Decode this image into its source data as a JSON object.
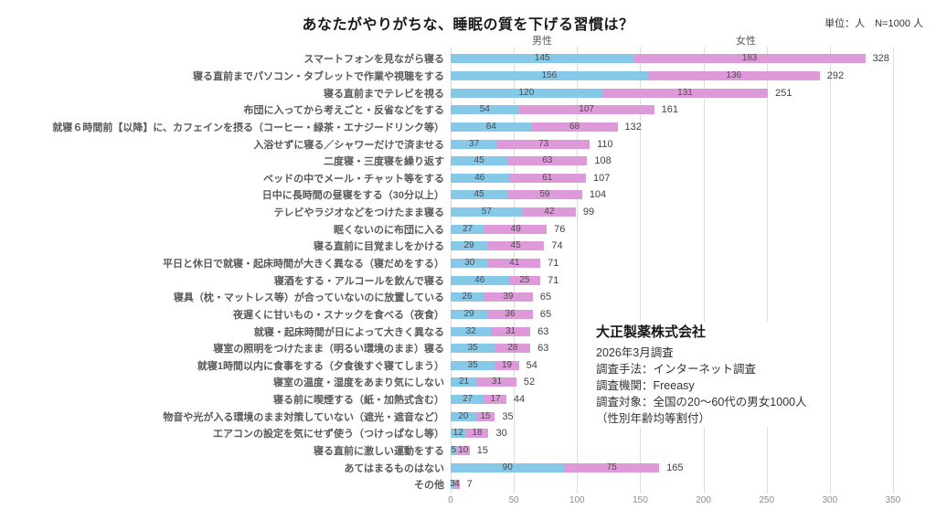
{
  "title": "あなたがやりがちな、睡眠の質を下げる習慣は？",
  "unit_note": "単位：人　N=1000 人",
  "legend": {
    "male": "男性",
    "female": "女性"
  },
  "colors": {
    "male": "#85C8E8",
    "female": "#DE9AD8",
    "grid": "#dcdcdc",
    "category_label": "#595959",
    "value_label": "#4d4d4d",
    "total_label": "#404040",
    "axis_label": "#8c8c8c"
  },
  "annotation": {
    "company": "大正製薬株式会社",
    "lines": [
      "2026年3月調査",
      "調査手法：インターネット調査",
      "調査機関：Freeasy",
      "調査対象：全国の20～60代の男女1000人",
      "（性別年齢均等割付）"
    ]
  },
  "chart_data": {
    "type": "bar",
    "stacked": true,
    "orientation": "horizontal",
    "title": "あなたがやりがちな、睡眠の質を下げる習慣は？",
    "xlim": [
      0,
      350
    ],
    "x_ticks": [
      0,
      50,
      100,
      150,
      200,
      250,
      300,
      350
    ],
    "grid": true,
    "legend_position": "top",
    "categories": [
      "スマートフォンを見ながら寝る",
      "寝る直前までパソコン・タブレットで作業や視聴をする",
      "寝る直前までテレビを視る",
      "布団に入ってから考えごと・反省などをする",
      "就寝６時間前【以降】に、カフェインを摂る（コーヒー・緑茶・エナジードリンク等）",
      "入浴せずに寝る／シャワーだけで済ませる",
      "二度寝・三度寝を繰り返す",
      "ベッドの中でメール・チャット等をする",
      "日中に長時間の昼寝をする（30分以上）",
      "テレビやラジオなどをつけたまま寝る",
      "眠くないのに布団に入る",
      "寝る直前に目覚ましをかける",
      "平日と休日で就寝・起床時間が大きく異なる（寝だめをする）",
      "寝酒をする・アルコールを飲んで寝る",
      "寝具（枕・マットレス等）が合っていないのに放置している",
      "夜遅くに甘いもの・スナックを食べる（夜食）",
      "就寝・起床時間が日によって大きく異なる",
      "寝室の照明をつけたまま（明るい環境のまま）寝る",
      "就寝1時間以内に食事をする（夕食後すぐ寝てしまう）",
      "寝室の温度・湿度をあまり気にしない",
      "寝る前に喫煙する（紙・加熱式含む）",
      "物音や光が入る環境のまま対策していない（遮光・遮音など）",
      "エアコンの設定を気にせず使う（つけっぱなし等）",
      "寝る直前に激しい運動をする",
      "あてはまるものはない",
      "その他"
    ],
    "series": [
      {
        "name": "男性",
        "values": [
          145,
          156,
          120,
          54,
          64,
          37,
          45,
          46,
          45,
          57,
          27,
          29,
          30,
          46,
          26,
          29,
          32,
          35,
          35,
          21,
          27,
          20,
          12,
          5,
          90,
          3
        ]
      },
      {
        "name": "女性",
        "values": [
          183,
          136,
          131,
          107,
          68,
          73,
          63,
          61,
          59,
          42,
          49,
          45,
          41,
          25,
          39,
          36,
          31,
          28,
          19,
          31,
          17,
          15,
          18,
          10,
          75,
          4
        ]
      }
    ],
    "totals": [
      328,
      292,
      251,
      161,
      132,
      110,
      108,
      107,
      104,
      99,
      76,
      74,
      71,
      71,
      65,
      65,
      63,
      63,
      54,
      52,
      44,
      35,
      30,
      15,
      165,
      7
    ]
  }
}
